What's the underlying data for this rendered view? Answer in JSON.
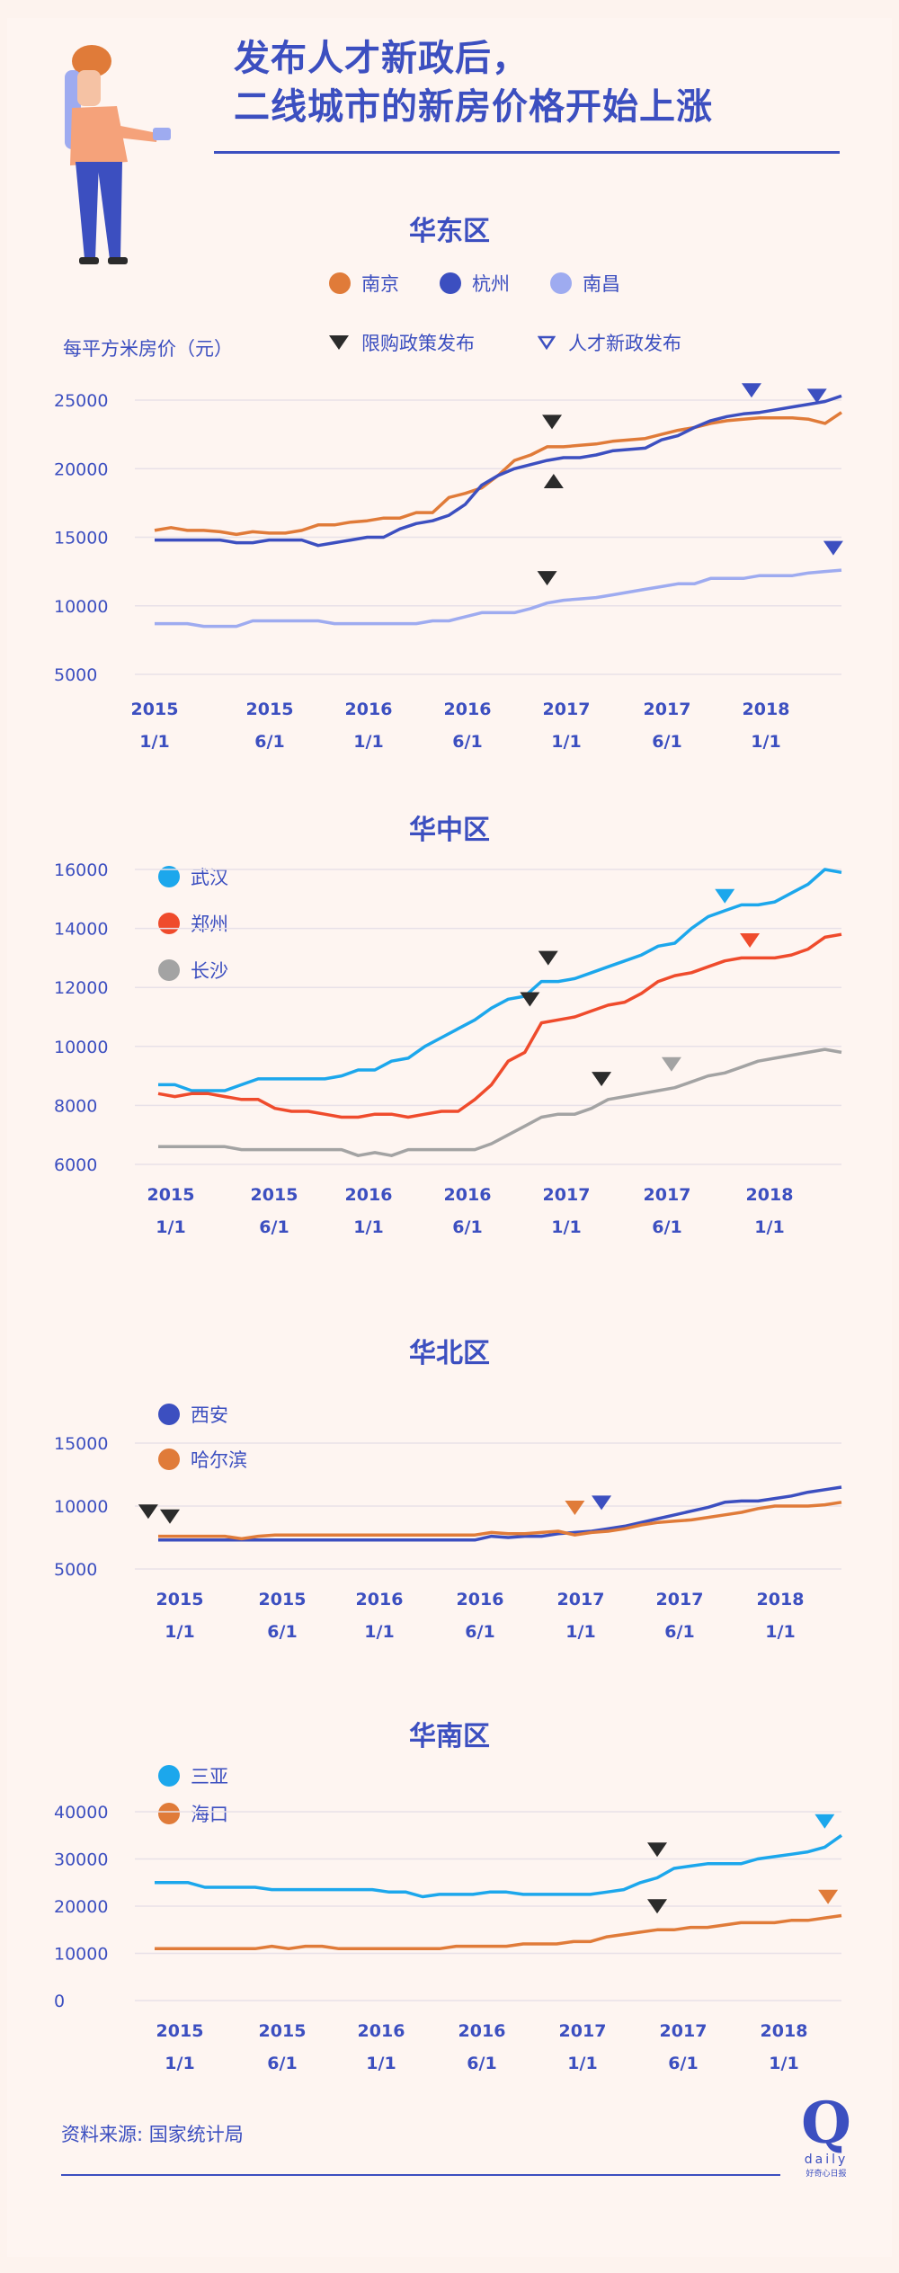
{
  "headline": {
    "line1": "发布人才新政后，",
    "line2": "二线城市的新房价格开始上涨"
  },
  "source": "资料来源: 国家统计局",
  "logo": {
    "letter": "Q",
    "word": "daily",
    "sub": "好奇心日报"
  },
  "colors": {
    "primary": "#3c4fc0",
    "background": "#fdf3ee",
    "marker_dark": "#2b2b2b"
  },
  "east": {
    "title": "华东区",
    "ylabel": "每平方米房价（元）",
    "legend_series": [
      "南京",
      "杭州",
      "南昌"
    ],
    "legend_markers": {
      "restriction": "限购政策发布",
      "talent": "人才新政发布"
    }
  },
  "central": {
    "title": "华中区",
    "legend_series": [
      "武汉",
      "郑州",
      "长沙"
    ]
  },
  "north": {
    "title": "华北区",
    "legend_series": [
      "西安",
      "哈尔滨"
    ]
  },
  "south": {
    "title": "华南区",
    "legend_series": [
      "三亚",
      "海口"
    ]
  },
  "chart_data": [
    {
      "type": "line",
      "title": "华东区",
      "ylabel": "每平方米房价（元）",
      "x_ticks": [
        "2015\n1/1",
        "2015\n6/1",
        "2016\n1/1",
        "2016\n6/1",
        "2017\n1/1",
        "2017\n6/1",
        "2018\n1/1"
      ],
      "ylim": [
        5000,
        25000
      ],
      "y_ticks": [
        5000,
        10000,
        15000,
        20000,
        25000
      ],
      "series": [
        {
          "name": "南京",
          "color": "#e07b39",
          "values": [
            15500,
            15700,
            15500,
            15500,
            15400,
            15200,
            15400,
            15300,
            15300,
            15500,
            15900,
            15900,
            16100,
            16200,
            16400,
            16400,
            16800,
            16800,
            17900,
            18200,
            18600,
            19500,
            20600,
            21000,
            21600,
            21600,
            21700,
            21800,
            22000,
            22100,
            22200,
            22500,
            22800,
            23000,
            23300,
            23500,
            23600,
            23700,
            23700,
            23700,
            23600,
            23300,
            24100
          ]
        },
        {
          "name": "杭州",
          "color": "#3c4fc0",
          "values": [
            14800,
            14800,
            14800,
            14800,
            14800,
            14600,
            14600,
            14800,
            14800,
            14800,
            14400,
            14600,
            14800,
            15000,
            15000,
            15600,
            16000,
            16200,
            16600,
            17400,
            18800,
            19500,
            20000,
            20300,
            20600,
            20800,
            20800,
            21000,
            21300,
            21400,
            21500,
            22100,
            22400,
            23000,
            23500,
            23800,
            24000,
            24100,
            24300,
            24500,
            24700,
            24900,
            25300
          ]
        },
        {
          "name": "南昌",
          "color": "#9eabf0",
          "values": [
            8700,
            8700,
            8700,
            8500,
            8500,
            8500,
            8900,
            8900,
            8900,
            8900,
            8900,
            8700,
            8700,
            8700,
            8700,
            8700,
            8700,
            8900,
            8900,
            9200,
            9500,
            9500,
            9500,
            9800,
            10200,
            10400,
            10500,
            10600,
            10800,
            11000,
            11200,
            11400,
            11600,
            11600,
            12000,
            12000,
            12000,
            12200,
            12200,
            12200,
            12400,
            12500,
            12600
          ]
        }
      ],
      "markers": [
        {
          "series": "南京",
          "kind": "restriction",
          "at": 24.3,
          "value": 21700,
          "dir": "down",
          "label_pos": "above"
        },
        {
          "series": "杭州",
          "kind": "restriction",
          "at": 24.4,
          "value": 20800,
          "dir": "up",
          "label_pos": "below"
        },
        {
          "series": "南昌",
          "kind": "restriction",
          "at": 24.0,
          "value": 10300,
          "dir": "down",
          "label_pos": "above"
        },
        {
          "series": "杭州",
          "kind": "talent",
          "at": 36.5,
          "value": 24000,
          "dir": "down",
          "label_pos": "above"
        },
        {
          "series": "南京",
          "kind": "talent",
          "at": 40.5,
          "value": 23600,
          "dir": "down",
          "label_pos": "above"
        },
        {
          "series": "南昌",
          "kind": "talent",
          "at": 41.5,
          "value": 12500,
          "dir": "down",
          "label_pos": "above"
        }
      ]
    },
    {
      "type": "line",
      "title": "华中区",
      "x_ticks": [
        "2015\n1/1",
        "2015\n6/1",
        "2016\n1/1",
        "2016\n6/1",
        "2017\n1/1",
        "2017\n6/1",
        "2018\n1/1"
      ],
      "ylim": [
        6000,
        16000
      ],
      "y_ticks": [
        6000,
        8000,
        10000,
        12000,
        14000,
        16000
      ],
      "series": [
        {
          "name": "武汉",
          "color": "#1ca7ec",
          "values": [
            8700,
            8700,
            8500,
            8500,
            8500,
            8700,
            8900,
            8900,
            8900,
            8900,
            8900,
            9000,
            9200,
            9200,
            9500,
            9600,
            10000,
            10300,
            10600,
            10900,
            11300,
            11600,
            11700,
            12200,
            12200,
            12300,
            12500,
            12700,
            12900,
            13100,
            13400,
            13500,
            14000,
            14400,
            14600,
            14800,
            14800,
            14900,
            15200,
            15500,
            16000,
            15900
          ]
        },
        {
          "name": "郑州",
          "color": "#ef4b2c",
          "values": [
            8400,
            8300,
            8400,
            8400,
            8300,
            8200,
            8200,
            7900,
            7800,
            7800,
            7700,
            7600,
            7600,
            7700,
            7700,
            7600,
            7700,
            7800,
            7800,
            8200,
            8700,
            9500,
            9800,
            10800,
            10900,
            11000,
            11200,
            11400,
            11500,
            11800,
            12200,
            12400,
            12500,
            12700,
            12900,
            13000,
            13000,
            13000,
            13100,
            13300,
            13700,
            13800
          ]
        },
        {
          "name": "长沙",
          "color": "#a3a3a3",
          "values": [
            6600,
            6600,
            6600,
            6600,
            6600,
            6500,
            6500,
            6500,
            6500,
            6500,
            6500,
            6500,
            6300,
            6400,
            6300,
            6500,
            6500,
            6500,
            6500,
            6500,
            6700,
            7000,
            7300,
            7600,
            7700,
            7700,
            7900,
            8200,
            8300,
            8400,
            8500,
            8600,
            8800,
            9000,
            9100,
            9300,
            9500,
            9600,
            9700,
            9800,
            9900,
            9800
          ]
        }
      ],
      "markers": [
        {
          "series": "武汉",
          "kind": "restriction",
          "at": 23.4,
          "value": 12200,
          "dir": "down",
          "label_pos": "above"
        },
        {
          "series": "郑州",
          "kind": "restriction",
          "at": 22.3,
          "value": 10800,
          "dir": "down",
          "label_pos": "above"
        },
        {
          "series": "长沙",
          "kind": "restriction",
          "at": 26.6,
          "value": 8100,
          "dir": "down",
          "label_pos": "above"
        },
        {
          "series": "长沙",
          "kind": "talent",
          "at": 30.8,
          "value": 8600,
          "dir": "down",
          "label_pos": "above",
          "color": "#a3a3a3"
        },
        {
          "series": "武汉",
          "kind": "talent",
          "at": 34.0,
          "value": 14300,
          "dir": "down",
          "label_pos": "above",
          "color": "#1ca7ec"
        },
        {
          "series": "郑州",
          "kind": "talent",
          "at": 35.5,
          "value": 12800,
          "dir": "down",
          "label_pos": "above",
          "color": "#ef4b2c"
        }
      ]
    },
    {
      "type": "line",
      "title": "华北区",
      "x_ticks": [
        "2015\n1/1",
        "2015\n6/1",
        "2016\n1/1",
        "2016\n6/1",
        "2017\n1/1",
        "2017\n6/1",
        "2018\n1/1"
      ],
      "ylim": [
        5000,
        15000
      ],
      "y_ticks": [
        5000,
        10000,
        15000
      ],
      "series": [
        {
          "name": "西安",
          "color": "#3c4fc0",
          "values": [
            7300,
            7300,
            7300,
            7300,
            7300,
            7300,
            7300,
            7300,
            7300,
            7300,
            7300,
            7300,
            7300,
            7300,
            7300,
            7300,
            7300,
            7300,
            7300,
            7300,
            7600,
            7500,
            7600,
            7600,
            7800,
            7900,
            8000,
            8200,
            8400,
            8700,
            9000,
            9300,
            9600,
            9900,
            10300,
            10400,
            10400,
            10600,
            10800,
            11100,
            11300,
            11500
          ]
        },
        {
          "name": "哈尔滨",
          "color": "#e07b39",
          "values": [
            7600,
            7600,
            7600,
            7600,
            7600,
            7400,
            7600,
            7700,
            7700,
            7700,
            7700,
            7700,
            7700,
            7700,
            7700,
            7700,
            7700,
            7700,
            7700,
            7700,
            7900,
            7800,
            7800,
            7900,
            8000,
            7700,
            7900,
            8000,
            8200,
            8500,
            8700,
            8800,
            8900,
            9100,
            9300,
            9500,
            9800,
            10000,
            10000,
            10000,
            10100,
            10300
          ]
        }
      ],
      "markers": [
        {
          "series": "西安",
          "kind": "restriction",
          "at": -0.6,
          "value": 7700,
          "dir": "down",
          "label_pos": "above"
        },
        {
          "series": "哈尔滨",
          "kind": "restriction",
          "at": 0.7,
          "value": 7300,
          "dir": "down",
          "label_pos": "above"
        },
        {
          "series": "哈尔滨",
          "kind": "talent",
          "at": 25.0,
          "value": 8000,
          "dir": "down",
          "label_pos": "above",
          "color": "#e07b39"
        },
        {
          "series": "西安",
          "kind": "talent",
          "at": 26.6,
          "value": 8400,
          "dir": "down",
          "label_pos": "above",
          "color": "#3c4fc0"
        }
      ]
    },
    {
      "type": "line",
      "title": "华南区",
      "x_ticks": [
        "2015\n1/1",
        "2015\n6/1",
        "2016\n1/1",
        "2016\n6/1",
        "2017\n1/1",
        "2017\n6/1",
        "2018\n1/1"
      ],
      "ylim": [
        0,
        40000
      ],
      "y_ticks": [
        0,
        10000,
        20000,
        30000,
        40000
      ],
      "series": [
        {
          "name": "三亚",
          "color": "#1ca7ec",
          "values": [
            25000,
            25000,
            25000,
            24000,
            24000,
            24000,
            24000,
            23500,
            23500,
            23500,
            23500,
            23500,
            23500,
            23500,
            23000,
            23000,
            22000,
            22500,
            22500,
            22500,
            23000,
            23000,
            22500,
            22500,
            22500,
            22500,
            22500,
            23000,
            23500,
            25000,
            26000,
            28000,
            28500,
            29000,
            29000,
            29000,
            30000,
            30500,
            31000,
            31500,
            32500,
            35000
          ]
        },
        {
          "name": "海口",
          "color": "#e07b39",
          "values": [
            11000,
            11000,
            11000,
            11000,
            11000,
            11000,
            11000,
            11500,
            11000,
            11500,
            11500,
            11000,
            11000,
            11000,
            11000,
            11000,
            11000,
            11000,
            11500,
            11500,
            11500,
            11500,
            12000,
            12000,
            12000,
            12500,
            12500,
            13500,
            14000,
            14500,
            15000,
            15000,
            15500,
            15500,
            16000,
            16500,
            16500,
            16500,
            17000,
            17000,
            17500,
            18000
          ]
        }
      ],
      "markers": [
        {
          "series": "三亚",
          "kind": "restriction",
          "at": 30.0,
          "value": 27000,
          "dir": "down",
          "label_pos": "above"
        },
        {
          "series": "海口",
          "kind": "restriction",
          "at": 30.0,
          "value": 15000,
          "dir": "down",
          "label_pos": "above"
        },
        {
          "series": "三亚",
          "kind": "talent",
          "at": 40.0,
          "value": 33000,
          "dir": "down",
          "label_pos": "above",
          "color": "#1ca7ec"
        },
        {
          "series": "海口",
          "kind": "talent",
          "at": 40.2,
          "value": 17000,
          "dir": "down",
          "label_pos": "above",
          "color": "#e07b39"
        }
      ]
    }
  ]
}
